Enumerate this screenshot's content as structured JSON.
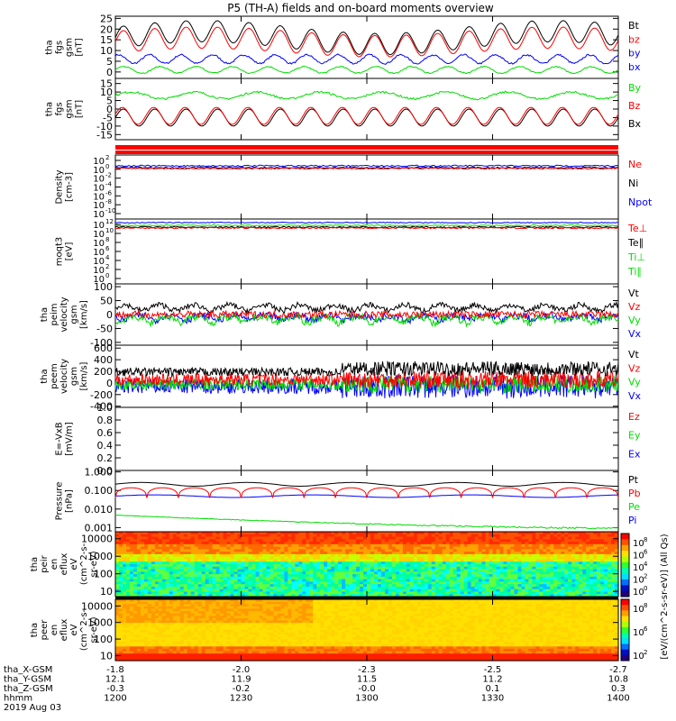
{
  "title": "P5 (TH-A) fields and on-board moments overview",
  "footer": {
    "rows": [
      {
        "label": "tha_X-GSM",
        "values": [
          "-1.8",
          "-2.0",
          "-2.3",
          "-2.5",
          "-2.7"
        ]
      },
      {
        "label": "tha_Y-GSM",
        "values": [
          "12.1",
          "11.9",
          "11.5",
          "11.2",
          "10.8"
        ]
      },
      {
        "label": "tha_Z-GSM",
        "values": [
          "-0.3",
          "-0.2",
          "-0.0",
          "0.1",
          "0.3"
        ]
      },
      {
        "label": "hhmm",
        "values": [
          "1200",
          "1230",
          "1300",
          "1330",
          "1400"
        ]
      }
    ],
    "date": "2019 Aug 03"
  },
  "colors": {
    "black": "#000000",
    "red": "#ff0000",
    "blue": "#0000ff",
    "green": "#00dd00"
  },
  "chart_data": [
    {
      "id": "fgs1",
      "type": "line",
      "ylabel": [
        "tha",
        "fgs",
        "gsm",
        "[nT]"
      ],
      "ylim": [
        -3,
        26
      ],
      "yticks": [
        "25",
        "20",
        "15",
        "10",
        "5",
        "0"
      ],
      "ytickvals": [
        25,
        20,
        15,
        10,
        5,
        0
      ],
      "series": [
        {
          "name": "Bt",
          "color": "#000000"
        },
        {
          "name": "bz",
          "color": "#ff0000"
        },
        {
          "name": "by",
          "color": "#0000ff"
        },
        {
          "name": "bx",
          "color": "#0000ff"
        }
      ],
      "xlim": [
        1200,
        1400
      ]
    },
    {
      "id": "fgs2",
      "type": "line",
      "ylabel": [
        "tha",
        "fgs",
        "gsm",
        "[nT]"
      ],
      "ylim": [
        -18,
        18
      ],
      "yticks": [
        "15",
        "10",
        "5",
        "0",
        "-5",
        "-10",
        "-15"
      ],
      "ytickvals": [
        15,
        10,
        5,
        0,
        -5,
        -10,
        -15
      ],
      "series": [
        {
          "name": "By",
          "color": "#00dd00"
        },
        {
          "name": "Bz",
          "color": "#ff0000"
        },
        {
          "name": "Bx",
          "color": "#000000"
        }
      ],
      "xlim": [
        1200,
        1400
      ]
    },
    {
      "id": "density",
      "type": "line",
      "ylabel": [
        "Density",
        "[cm-3]"
      ],
      "yscale": "log",
      "yticks": [
        "10",
        "10",
        "10",
        "10",
        "10",
        "10",
        "10"
      ],
      "ytickexp": [
        "2",
        "0",
        "-2",
        "-4",
        "-6",
        "-8",
        "-10"
      ],
      "series": [
        {
          "name": "Ne",
          "color": "#ff0000"
        },
        {
          "name": "Ni",
          "color": "#000000"
        },
        {
          "name": "Npot",
          "color": "#0000ff"
        }
      ],
      "xlim": [
        1200,
        1400
      ]
    },
    {
      "id": "temp",
      "type": "line",
      "ylabel": [
        "moqt3",
        "[eV]"
      ],
      "yscale": "log",
      "yticks": [
        "10",
        "10",
        "10",
        "10",
        "10",
        "10",
        "10"
      ],
      "ytickexp": [
        "12",
        "10",
        "8",
        "6",
        "4",
        "2",
        "0"
      ],
      "series": [
        {
          "name": "Te⊥",
          "color": "#ff0000"
        },
        {
          "name": "Te∥",
          "color": "#000000"
        },
        {
          "name": "Ti⊥",
          "color": "#00dd00"
        },
        {
          "name": "Ti∥",
          "color": "#00dd00"
        }
      ],
      "xlim": [
        1200,
        1400
      ]
    },
    {
      "id": "vi",
      "type": "line",
      "ylabel": [
        "tha",
        "peim",
        "velocity",
        "gsm",
        "[km/s]"
      ],
      "ylim": [
        -110,
        110
      ],
      "yticks": [
        "100",
        "50",
        "0",
        "-50",
        "-100"
      ],
      "ytickvals": [
        100,
        50,
        0,
        -50,
        -100
      ],
      "series": [
        {
          "name": "Vt",
          "color": "#000000"
        },
        {
          "name": "Vz",
          "color": "#ff0000"
        },
        {
          "name": "Vy",
          "color": "#00dd00"
        },
        {
          "name": "Vx",
          "color": "#0000ff"
        }
      ],
      "xlim": [
        1200,
        1400
      ]
    },
    {
      "id": "ve",
      "type": "line",
      "ylabel": [
        "tha",
        "peem",
        "velocity",
        "gsm",
        "[km/s]"
      ],
      "ylim": [
        -420,
        650
      ],
      "yticks": [
        "600",
        "400",
        "200",
        "0",
        "-200",
        "-400"
      ],
      "ytickvals": [
        600,
        400,
        200,
        0,
        -200,
        -400
      ],
      "series": [
        {
          "name": "Vt",
          "color": "#000000"
        },
        {
          "name": "Vz",
          "color": "#ff0000"
        },
        {
          "name": "Vy",
          "color": "#00dd00"
        },
        {
          "name": "Vx",
          "color": "#0000ff"
        }
      ],
      "xlim": [
        1200,
        1400
      ]
    },
    {
      "id": "efield",
      "type": "line",
      "ylabel": [
        "E=-VxB",
        "[mV/m]"
      ],
      "ylim": [
        0,
        1
      ],
      "yticks": [
        "1.0",
        "0.8",
        "0.6",
        "0.4",
        "0.2",
        "0.0"
      ],
      "ytickvals": [
        1,
        0.8,
        0.6,
        0.4,
        0.2,
        0
      ],
      "series": [
        {
          "name": "Ez",
          "color": "#ff0000"
        },
        {
          "name": "Ey",
          "color": "#00dd00"
        },
        {
          "name": "Ex",
          "color": "#0000ff"
        }
      ],
      "xlim": [
        1200,
        1400
      ]
    },
    {
      "id": "pressure",
      "type": "line",
      "ylabel": [
        "Pressure",
        "[nPa]"
      ],
      "yscale": "log",
      "ylim": [
        0.0006,
        1.2
      ],
      "yticks": [
        "1.000",
        "0.100",
        "0.010",
        "0.001"
      ],
      "ytickvals": [
        1,
        0.1,
        0.01,
        0.001
      ],
      "series": [
        {
          "name": "Pt",
          "color": "#000000"
        },
        {
          "name": "Pb",
          "color": "#ff0000"
        },
        {
          "name": "Pe",
          "color": "#00dd00"
        },
        {
          "name": "Pi",
          "color": "#0000ff"
        }
      ],
      "xlim": [
        1200,
        1400
      ]
    },
    {
      "id": "ion_spec",
      "type": "heatmap",
      "ylabel": [
        "tha",
        "peir",
        "en",
        "eflux",
        "eV",
        "(cm^2-s-",
        "sr-eV)"
      ],
      "yscale": "log",
      "ylim": [
        5,
        25000
      ],
      "yticks": [
        "10000",
        "1000",
        "100",
        "10"
      ],
      "ytickvals": [
        10000,
        1000,
        100,
        10
      ],
      "xlim": [
        1200,
        1400
      ]
    },
    {
      "id": "elec_spec",
      "type": "heatmap",
      "ylabel": [
        "tha",
        "peer",
        "en",
        "eflux",
        "eV",
        "(cm^2-s-",
        "sr-eV)"
      ],
      "yscale": "log",
      "ylim": [
        5,
        25000
      ],
      "yticks": [
        "10000",
        "1000",
        "100",
        "10"
      ],
      "ytickvals": [
        10000,
        1000,
        100,
        10
      ],
      "xlim": [
        1200,
        1400
      ]
    }
  ],
  "colorbar": {
    "label": "[eV/(cm^2-s-sr-eV)] (All Qs)",
    "ticks_ion": [
      "10",
      "10",
      "10",
      "10",
      "10"
    ],
    "ticks_ion_exp": [
      "8",
      "6",
      "4",
      "2",
      "0"
    ],
    "ticks_elec": [
      "10",
      "10",
      "10"
    ],
    "ticks_elec_exp": [
      "8",
      "6",
      "2"
    ]
  }
}
